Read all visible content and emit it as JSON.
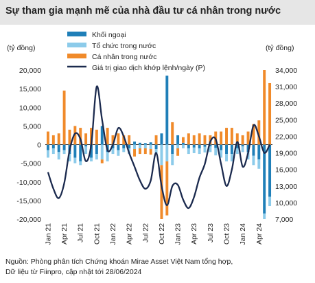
{
  "title": "Sự tham gia mạnh mẽ của nhà đầu tư cá nhân trong nước",
  "source_lines": [
    "Nguồn: Phòng phân tích Chứng khoán Mirae Asset Việt Nam tổng hợp,",
    "Dữ liệu từ Fiinpro, cập nhật tới 28/06/2024"
  ],
  "colors": {
    "khoi_ngoai": "#1f7fb8",
    "to_chuc": "#8ccbea",
    "ca_nhan": "#f08a2a",
    "price_line": "#1b2a4e",
    "title_band": "#e6e6e6"
  },
  "chart_data": {
    "type": "bar",
    "stacked": true,
    "ylabel": "(tỷ đồng)",
    "y2label": "(tỷ đồng)",
    "ylim": [
      -20000,
      20000
    ],
    "yticks": [
      -20000,
      -15000,
      -10000,
      -5000,
      0,
      5000,
      10000,
      15000,
      20000
    ],
    "ytick_labels": [
      "-20,000",
      "-15,000",
      "-10,000",
      "-5,000",
      "0",
      "5,000",
      "10,000",
      "15,000",
      "20,000"
    ],
    "y2lim": [
      7000,
      34000
    ],
    "y2ticks": [
      7000,
      10000,
      13000,
      16000,
      19000,
      22000,
      25000,
      28000,
      31000,
      34000
    ],
    "y2tick_labels": [
      "7,000",
      "10,000",
      "13,000",
      "16,000",
      "19,000",
      "22,000",
      "25,000",
      "28,000",
      "31,000",
      "34,000"
    ],
    "x_tick_labels": [
      "Jan 21",
      "Apr 21",
      "Jul 21",
      "Oct 21",
      "Jan 22",
      "Apr 22",
      "Jul 22",
      "Oct 22",
      "Jan 23",
      "Apr 23",
      "Jul 23",
      "Oct 23",
      "Jan 24",
      "Apr 24"
    ],
    "legend": {
      "placement": "top-center"
    },
    "categories": [
      "01/21",
      "02/21",
      "03/21",
      "04/21",
      "05/21",
      "06/21",
      "07/21",
      "08/21",
      "09/21",
      "10/21",
      "11/21",
      "12/21",
      "01/22",
      "02/22",
      "03/22",
      "04/22",
      "05/22",
      "06/22",
      "07/22",
      "08/22",
      "09/22",
      "10/22",
      "11/22",
      "12/22",
      "01/23",
      "02/23",
      "03/23",
      "04/23",
      "05/23",
      "06/23",
      "07/23",
      "08/23",
      "09/23",
      "10/23",
      "11/23",
      "12/23",
      "01/24",
      "02/24",
      "03/24",
      "04/24",
      "05/24",
      "06/24"
    ],
    "series": [
      {
        "name": "Khối ngoại",
        "kind": "bar",
        "values": [
          -1500,
          -1000,
          -2000,
          -1500,
          -2500,
          -3500,
          -4500,
          -500,
          -3500,
          -2500,
          5000,
          -2000,
          -1000,
          -1500,
          -1000,
          -1000,
          800,
          500,
          400,
          600,
          -1200,
          3000,
          18500,
          -2500,
          2500,
          500,
          -1000,
          -800,
          -1000,
          -600,
          -500,
          -900,
          -1500,
          -2500,
          -2500,
          -1000,
          -500,
          -2000,
          -3000,
          -4000,
          -18500,
          -14000
        ]
      },
      {
        "name": "Tổ chức trong nước",
        "kind": "bar",
        "values": [
          -2000,
          -1500,
          -2000,
          -1000,
          -2000,
          -1500,
          -1000,
          -2000,
          -1000,
          -1500,
          -4000,
          -2500,
          -1500,
          -1500,
          -1000,
          -1500,
          -1200,
          -1000,
          -1000,
          -1200,
          -1500,
          -5500,
          -4500,
          -3000,
          -1000,
          -1000,
          -1500,
          -1500,
          -1500,
          -1500,
          -1500,
          -2000,
          -2000,
          -2000,
          -2000,
          -1500,
          -1500,
          -2000,
          -2500,
          -2500,
          -1500,
          -2500
        ]
      },
      {
        "name": "Cá nhân trong nước",
        "kind": "bar",
        "values": [
          3500,
          2500,
          3000,
          14500,
          4000,
          5000,
          4500,
          3000,
          4500,
          4000,
          -1000,
          4500,
          2500,
          3000,
          2500,
          2500,
          -2000,
          -1500,
          -1500,
          -1500,
          2500,
          -14500,
          -14500,
          6000,
          -2000,
          1500,
          3000,
          2500,
          3000,
          2500,
          2500,
          3500,
          3500,
          4500,
          4500,
          3000,
          2500,
          3500,
          5500,
          6500,
          20000,
          16500
        ]
      },
      {
        "name": "Giá trị giao dịch khớp lệnh/ngày (P)",
        "kind": "line",
        "axis": "right",
        "values": [
          15500,
          12500,
          10800,
          13500,
          19500,
          22500,
          21500,
          17500,
          20500,
          31000,
          25000,
          19500,
          20500,
          23500,
          22000,
          19000,
          16500,
          14000,
          12500,
          14000,
          19000,
          13000,
          9500,
          13000,
          13200,
          10500,
          9000,
          11000,
          14500,
          17000,
          21000,
          21500,
          17000,
          13000,
          16000,
          21000,
          16500,
          19000,
          24000,
          22000,
          19000,
          20500
        ]
      }
    ]
  }
}
